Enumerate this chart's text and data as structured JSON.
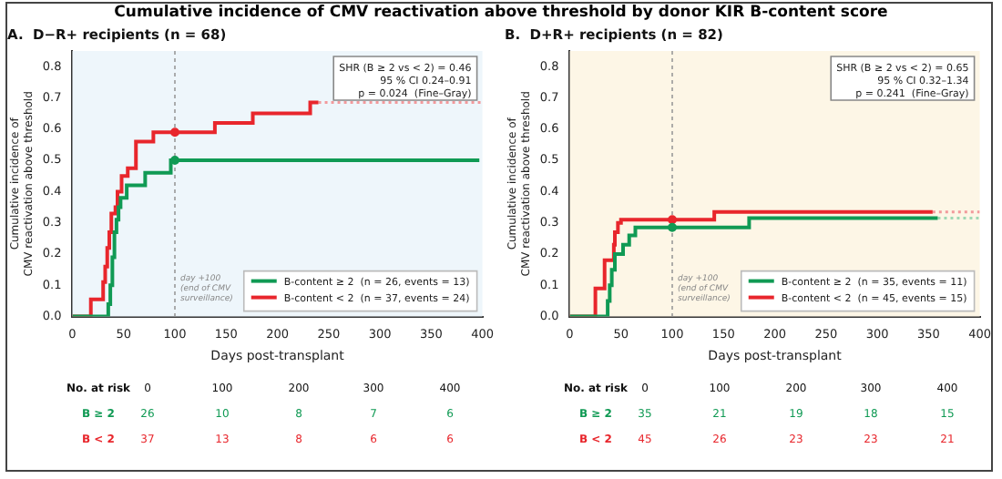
{
  "chart_data": [
    {
      "type": "step",
      "title": "Cumulative incidence of CMV reactivation above threshold by donor KIR B-content score",
      "subtitle": "A.  D−R+ recipients (n = 68)",
      "xlabel": "Days post-transplant",
      "ylabel": "Cumulative incidence of\nCMV reactivation above threshold",
      "xlim": [
        0,
        400
      ],
      "xticks": [
        0,
        50,
        100,
        150,
        200,
        250,
        300,
        350,
        400
      ],
      "ylim": [
        0,
        0.85
      ],
      "yticks": [
        {
          "value": 0,
          "label": "0.0"
        },
        0.1,
        0.2,
        0.3,
        0.4,
        0.5,
        0.6,
        0.7,
        0.8
      ],
      "legend": "bottom right",
      "grid": false,
      "series": [
        {
          "name": "B-content ≥ 2  (n = 26, events = 13)",
          "color": "#109a54",
          "x": [
            0,
            35,
            37,
            39,
            41,
            43,
            45,
            47,
            53,
            71,
            96,
            397
          ],
          "values": [
            0,
            0.04,
            0.1,
            0.19,
            0.27,
            0.31,
            0.35,
            0.38,
            0.42,
            0.46,
            0.5,
            0.5
          ]
        },
        {
          "name": "B-content < 2  (n = 37, events = 24)",
          "color": "#e8262c",
          "x": [
            0,
            18,
            30,
            32,
            34,
            36,
            38,
            42,
            44,
            48,
            54,
            62,
            79,
            139,
            176,
            232,
            240
          ],
          "values": [
            0,
            0.055,
            0.11,
            0.16,
            0.22,
            0.27,
            0.33,
            0.35,
            0.4,
            0.45,
            0.475,
            0.56,
            0.59,
            0.62,
            0.65,
            0.685,
            0.685
          ]
        },
        {
          "type": "line",
          "line_style": "dotted",
          "color": "#f29a9c",
          "x": [
            240,
            400
          ],
          "values": [
            0.685,
            0.685
          ]
        },
        {
          "type": "scatter",
          "marker": "circle",
          "color": "#109a54",
          "x": [
            100
          ],
          "values": [
            0.5
          ]
        },
        {
          "type": "scatter",
          "marker": "circle",
          "color": "#e8262c",
          "x": [
            100
          ],
          "values": [
            0.59
          ]
        }
      ],
      "ref_lines": [
        {
          "axis": "x",
          "value": 100,
          "label": "day +100\n(end of CMV\nsurveillance)"
        }
      ],
      "annotations": [
        "SHR (B ≥ 2 vs < 2) = 0.46",
        "95 % CI 0.24–0.91",
        "p = 0.024  (Fine–Gray)",
        "No. at risk",
        "0",
        "100",
        "200",
        "300",
        "400",
        "B ≥ 2",
        "26",
        "10",
        "8",
        "7",
        "6",
        "B < 2",
        "37",
        "13",
        "8",
        "6",
        "6"
      ]
    },
    {
      "type": "step",
      "subtitle": "B.  D+R+ recipients (n = 82)",
      "xlabel": "Days post-transplant",
      "ylabel": "Cumulative incidence of\nCMV reactivation above threshold",
      "xlim": [
        0,
        400
      ],
      "xticks": [
        0,
        50,
        100,
        150,
        200,
        250,
        300,
        350,
        400
      ],
      "ylim": [
        0,
        0.85
      ],
      "yticks": [
        {
          "value": 0,
          "label": "0.0"
        },
        0.1,
        0.2,
        0.3,
        0.4,
        0.5,
        0.6,
        0.7,
        0.8
      ],
      "legend": "bottom right",
      "grid": false,
      "series": [
        {
          "name": "B-content ≥ 2  (n = 35, events = 11)",
          "color": "#109a54",
          "x": [
            0,
            37,
            39,
            41,
            44,
            52,
            58,
            64,
            175,
            359
          ],
          "values": [
            0,
            0.05,
            0.1,
            0.15,
            0.2,
            0.23,
            0.26,
            0.285,
            0.315,
            0.315
          ]
        },
        {
          "name": "B-content < 2  (n = 45, events = 15)",
          "color": "#e8262c",
          "x": [
            0,
            25,
            34,
            43,
            44,
            47,
            50,
            141,
            354
          ],
          "values": [
            0,
            0.09,
            0.18,
            0.23,
            0.27,
            0.3,
            0.31,
            0.335,
            0.335
          ]
        },
        {
          "type": "line",
          "line_style": "dotted",
          "color": "#9fd8b4",
          "x": [
            359,
            400
          ],
          "values": [
            0.315,
            0.315
          ]
        },
        {
          "type": "line",
          "line_style": "dotted",
          "color": "#f29a9c",
          "x": [
            354,
            400
          ],
          "values": [
            0.335,
            0.335
          ]
        },
        {
          "type": "scatter",
          "marker": "circle",
          "color": "#109a54",
          "x": [
            100
          ],
          "values": [
            0.285
          ]
        },
        {
          "type": "scatter",
          "marker": "circle",
          "color": "#e8262c",
          "x": [
            100
          ],
          "values": [
            0.31
          ]
        }
      ],
      "ref_lines": [
        {
          "axis": "x",
          "value": 100,
          "label": "day +100\n(end of CMV\nsurveillance)"
        }
      ],
      "annotations": [
        "SHR (B ≥ 2 vs < 2) = 0.65",
        "95 % CI 0.32–1.34",
        "p = 0.241  (Fine–Gray)",
        "No. at risk",
        "0",
        "100",
        "200",
        "300",
        "400",
        "B ≥ 2",
        "35",
        "21",
        "19",
        "18",
        "15",
        "B < 2",
        "45",
        "26",
        "23",
        "23",
        "21"
      ]
    }
  ]
}
